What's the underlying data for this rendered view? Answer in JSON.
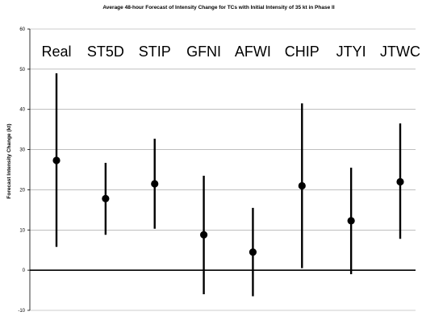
{
  "chart_data": {
    "type": "scatter",
    "title": "Average 48-hour Forecast of Intensity Change for TCs with Initial Intensity of 35 kt in Phase II",
    "xlabel": "",
    "ylabel": "Forecast Intensity Change (kt)",
    "ylim": [
      -10,
      60
    ],
    "yticks": [
      "-10",
      "0",
      "10",
      "20",
      "30",
      "40",
      "50",
      "60"
    ],
    "grid": true,
    "legend": "none",
    "categories": [
      "Real",
      "ST5D",
      "STIP",
      "GFNI",
      "AFWI",
      "CHIP",
      "JTYI",
      "JTWC"
    ],
    "series": [
      {
        "mean": [
          27.3,
          17.8,
          21.5,
          8.8,
          4.5,
          21.0,
          12.3,
          22.0
        ],
        "low": [
          5.8,
          8.8,
          10.3,
          -6.0,
          -6.5,
          0.5,
          -1.0,
          7.8
        ],
        "high": [
          49.0,
          26.7,
          32.7,
          23.5,
          15.5,
          41.5,
          25.5,
          36.5
        ]
      }
    ],
    "colors": {
      "marker": "#000000",
      "errorbar": "#000000",
      "grid": "#999999",
      "zero_line": "#000000"
    }
  }
}
